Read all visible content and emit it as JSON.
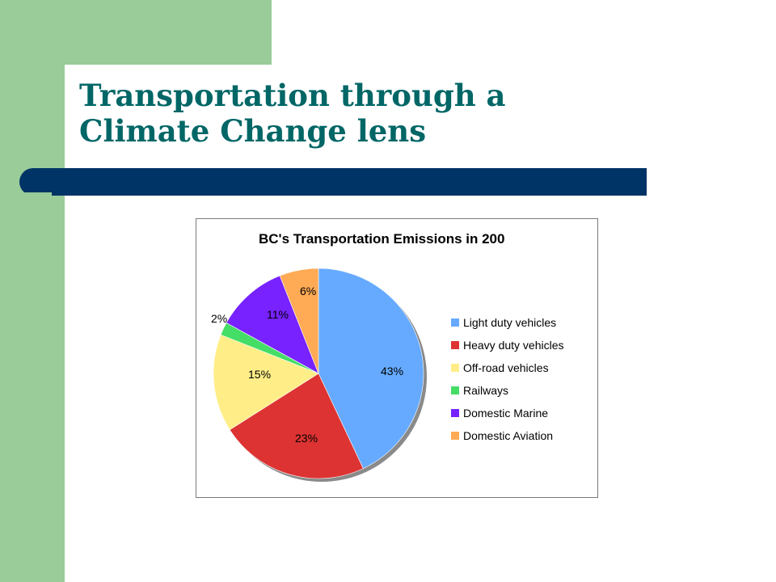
{
  "slide": {
    "title_line1": "Transportation through a",
    "title_line2": "Climate Change lens"
  },
  "colors": {
    "green_panel": "#99cc99",
    "title_text": "#006666",
    "title_bar": "#003366"
  },
  "chart_data": {
    "type": "pie",
    "title": "BC's Transportation Emissions in 200",
    "legend_position": "right",
    "slices": [
      {
        "label": "Light duty vehicles",
        "value": 43,
        "display": "43%",
        "color": "#66aaff"
      },
      {
        "label": "Heavy duty vehicles",
        "value": 23,
        "display": "23%",
        "color": "#dd3333"
      },
      {
        "label": "Off-road vehicles",
        "value": 15,
        "display": "15%",
        "color": "#ffee88"
      },
      {
        "label": "Railways",
        "value": 2,
        "display": "2%",
        "color": "#44dd66"
      },
      {
        "label": "Domestic Marine",
        "value": 11,
        "display": "11%",
        "color": "#7722ff"
      },
      {
        "label": "Domestic Aviation",
        "value": 6,
        "display": "6%",
        "color": "#ffaa55"
      }
    ]
  }
}
